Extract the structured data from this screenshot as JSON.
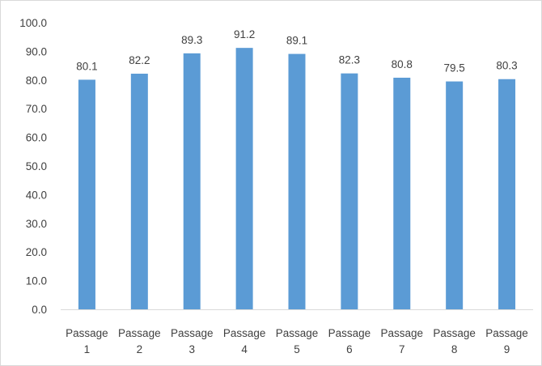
{
  "chart_data": {
    "type": "bar",
    "categories": [
      [
        "Passage",
        "1"
      ],
      [
        "Passage",
        "2"
      ],
      [
        "Passage",
        "3"
      ],
      [
        "Passage",
        "4"
      ],
      [
        "Passage",
        "5"
      ],
      [
        "Passage",
        "6"
      ],
      [
        "Passage",
        "7"
      ],
      [
        "Passage",
        "8"
      ],
      [
        "Passage",
        "9"
      ]
    ],
    "values": [
      80.1,
      82.2,
      89.3,
      91.2,
      89.1,
      82.3,
      80.8,
      79.5,
      80.3
    ],
    "data_labels": [
      "80.1",
      "82.2",
      "89.3",
      "91.2",
      "89.1",
      "82.3",
      "80.8",
      "79.5",
      "80.3"
    ],
    "y_ticks": [
      "0.0",
      "10.0",
      "20.0",
      "30.0",
      "40.0",
      "50.0",
      "60.0",
      "70.0",
      "80.0",
      "90.0",
      "100.0"
    ],
    "ylim": [
      0,
      100
    ],
    "title": "",
    "xlabel": "",
    "ylabel": "",
    "grid": false,
    "legend": "none",
    "bar_color": "#5b9bd5",
    "axis_color": "#d9d9d9",
    "text_color": "#404040"
  }
}
